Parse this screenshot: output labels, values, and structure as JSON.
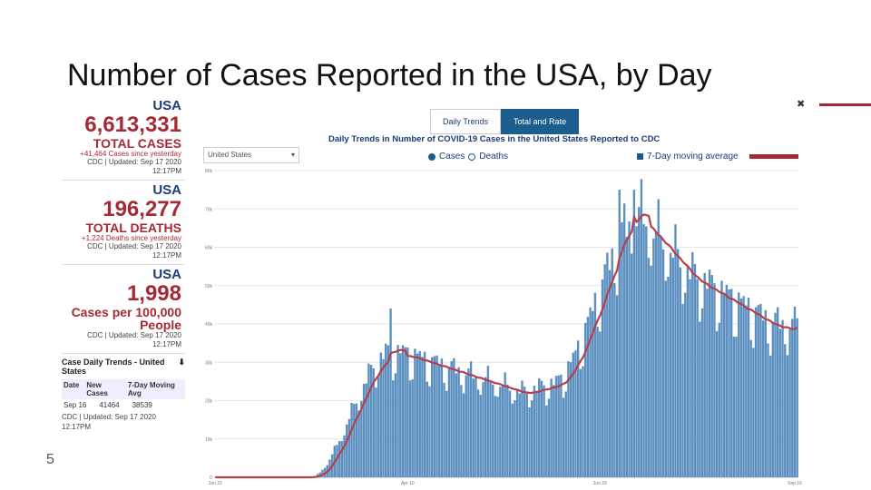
{
  "slide": {
    "title": "Number of Cases Reported in the USA, by Day",
    "slide_number": "5",
    "close_glyph": "✖"
  },
  "stats": {
    "cases": {
      "location": "USA",
      "value": "6,613,331",
      "label": "TOTAL CASES",
      "sub": "+41,464 Cases since yesterday",
      "updated": "CDC | Updated: Sep 17 2020",
      "time": "12:17PM"
    },
    "deaths": {
      "location": "USA",
      "value": "196,277",
      "label": "TOTAL DEATHS",
      "sub": "+1,224 Deaths since yesterday",
      "updated": "CDC | Updated: Sep 17 2020",
      "time": "12:17PM"
    },
    "rate": {
      "location": "USA",
      "value": "1,998",
      "label": "Cases per 100,000 People",
      "updated": "CDC | Updated: Sep 17 2020",
      "time": "12:17PM"
    },
    "trends_table": {
      "title": "Case Daily Trends - United States",
      "col_date": "Date",
      "col_new": "New Cases",
      "col_avg": "7-Day Moving Avg",
      "row_date": "Sep 16",
      "row_new": "41464",
      "row_avg": "38539",
      "footer": "CDC | Updated: Sep 17 2020",
      "footer_time": "12:17PM"
    }
  },
  "chart_ui": {
    "tab_daily": "Daily Trends",
    "tab_total": "Total and Rate",
    "title": "Daily Trends in Number of COVID-19 Cases in the United States Reported to CDC",
    "select_value": "United States",
    "radio_cases": "Cases",
    "radio_deaths": "Deaths",
    "moving_avg_label": "7-Day moving average",
    "bar_color": "#5b8fc0",
    "line_color": "#b5404c"
  },
  "chart_data": {
    "type": "bar",
    "title": "Daily Trends in Number of COVID-19 Cases in the United States Reported to CDC",
    "xlabel": "",
    "ylabel": "",
    "ylim": [
      0,
      80000
    ],
    "y_ticks": [
      0,
      10000,
      20000,
      30000,
      40000,
      50000,
      60000,
      70000,
      80000
    ],
    "y_tick_labels": [
      "0",
      "10k",
      "20k",
      "30k",
      "40k",
      "50k",
      "60k",
      "70k",
      "80k"
    ],
    "x_tick_labels": [
      "Jan 22",
      "Apr 10",
      "Jun 29",
      "Sep 16"
    ],
    "x_tick_indices": [
      0,
      79,
      158,
      238
    ],
    "key_values": {
      "first_peak_cases": 44000,
      "summer_peak_cases": 75000,
      "spring_plateau_avg": 32000,
      "summer_peak_avg": 67000,
      "latest_cases": 41464,
      "latest_avg": 38539
    },
    "series": [
      {
        "name": "Cases",
        "kind": "bar"
      },
      {
        "name": "7-Day moving average",
        "kind": "line"
      }
    ]
  }
}
